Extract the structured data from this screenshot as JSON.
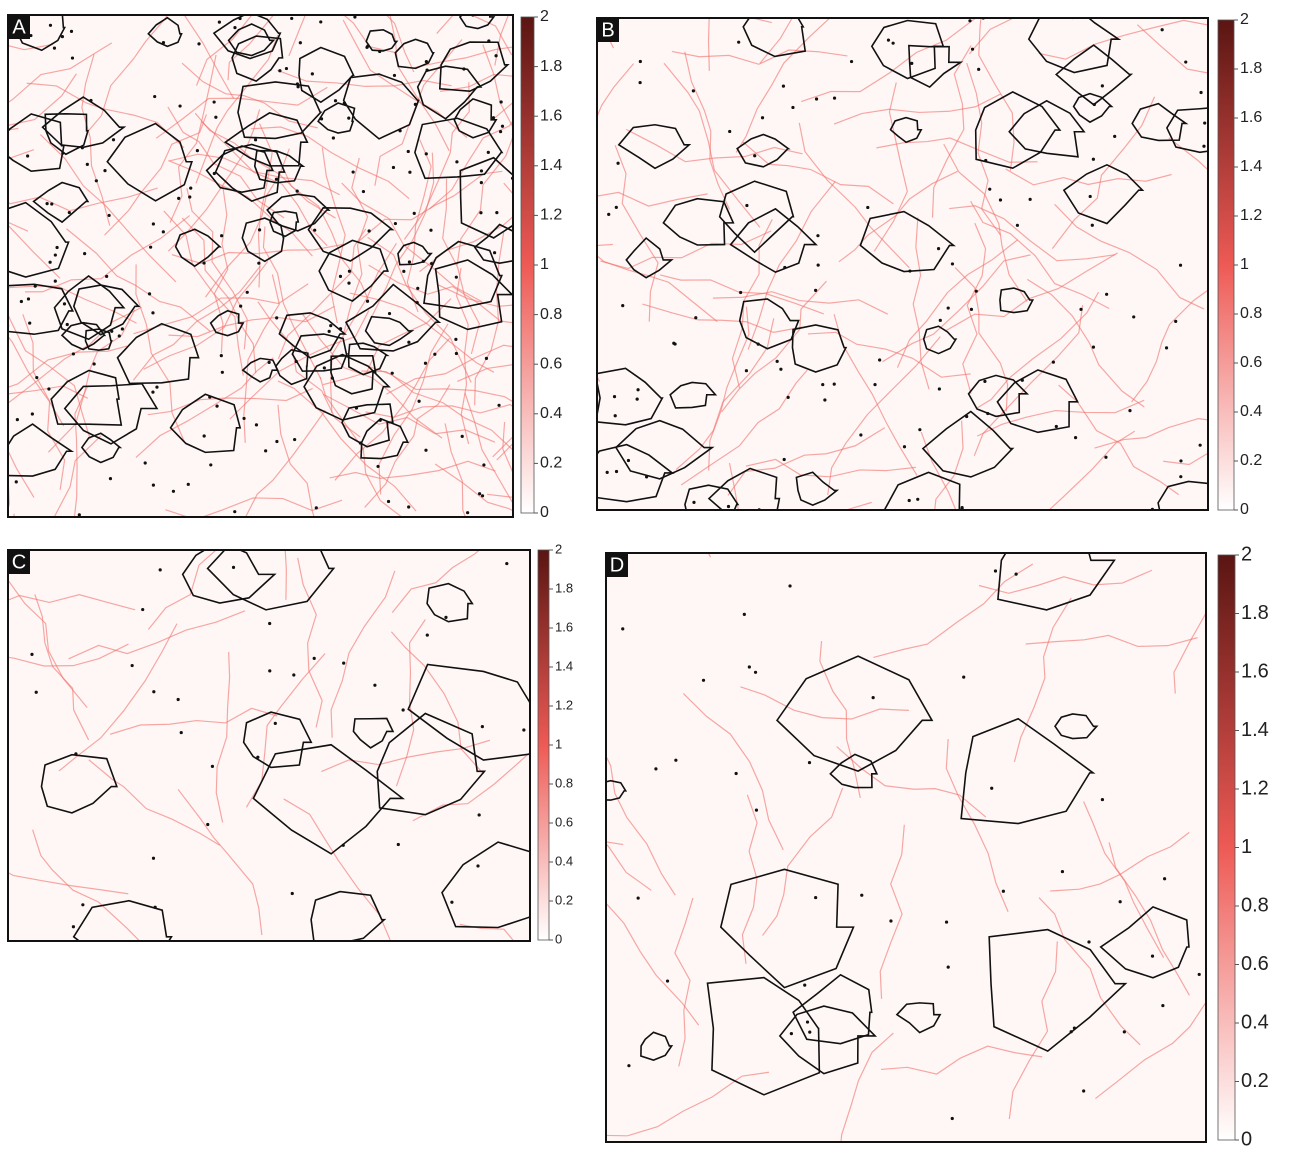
{
  "chart_data": [
    {
      "type": "colormap",
      "label": "A",
      "clim": [
        0,
        2
      ],
      "cticks": [
        0,
        0.2,
        0.4,
        0.6,
        0.8,
        1,
        1.2,
        1.4,
        1.6,
        1.8,
        2
      ]
    },
    {
      "type": "colormap",
      "label": "B",
      "clim": [
        0,
        2
      ],
      "cticks": [
        0,
        0.2,
        0.4,
        0.6,
        0.8,
        1,
        1.2,
        1.4,
        1.6,
        1.8,
        2
      ]
    },
    {
      "type": "colormap",
      "label": "C",
      "clim": [
        0,
        2
      ],
      "cticks": [
        0,
        0.2,
        0.4,
        0.6,
        0.8,
        1,
        1.2,
        1.4,
        1.6,
        1.8,
        2
      ]
    },
    {
      "type": "colormap",
      "label": "D",
      "clim": [
        0,
        2
      ],
      "cticks": [
        0,
        0.2,
        0.4,
        0.6,
        0.8,
        1,
        1.2,
        1.4,
        1.6,
        1.8,
        2
      ]
    }
  ]
}
